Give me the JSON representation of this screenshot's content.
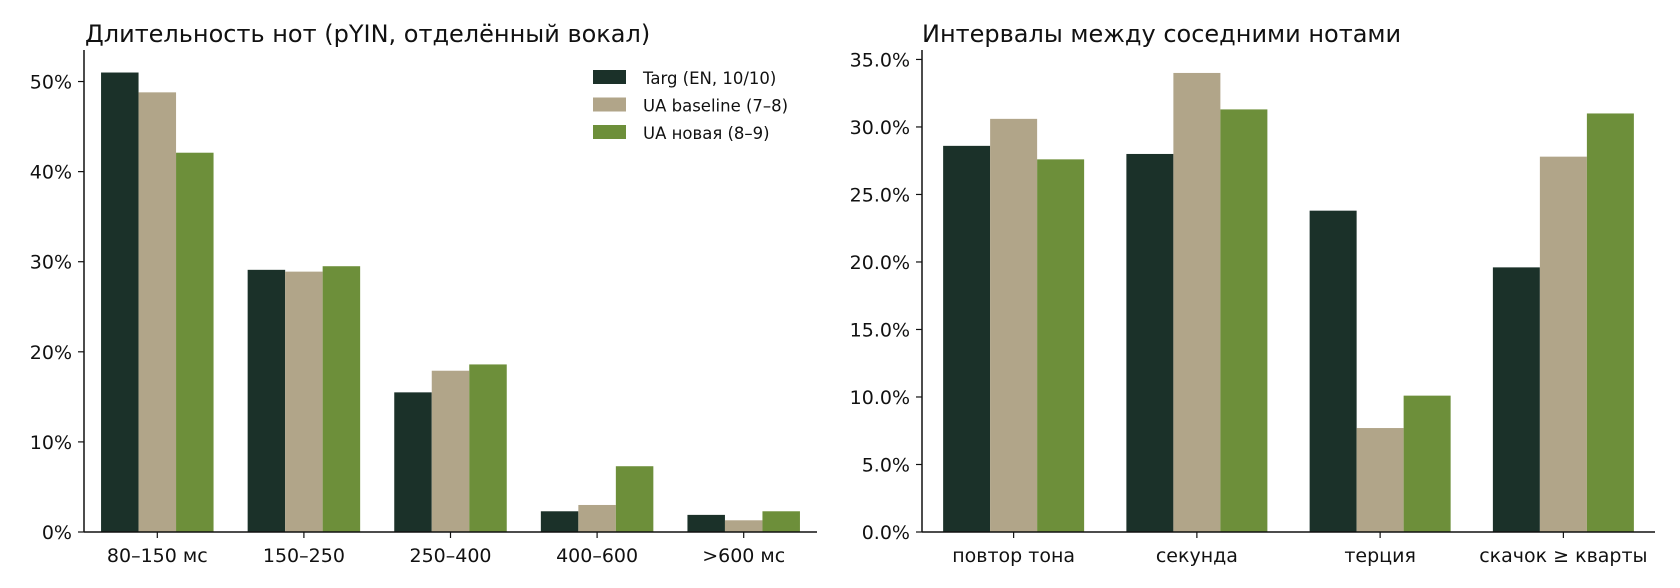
{
  "colors": {
    "targ": "#1b3129",
    "ua_baseline": "#b1a589",
    "ua_new": "#6d8f3a",
    "axis": "#111111"
  },
  "legend": {
    "placement": "top-right",
    "entries": [
      "Targ (EN, 10/10)",
      "UA baseline (7–8)",
      "UA новая (8–9)"
    ]
  },
  "chart_data": [
    {
      "type": "bar",
      "title": "Длительность нот (pYIN, отделённый вокал)",
      "xlabel": "",
      "ylabel": "",
      "categories": [
        "80–150 мс",
        "150–250",
        "250–400",
        "400–600",
        ">600 мс"
      ],
      "series": [
        {
          "name": "Targ (EN, 10/10)",
          "values": [
            51.0,
            29.1,
            15.5,
            2.3,
            1.9
          ]
        },
        {
          "name": "UA baseline (7–8)",
          "values": [
            48.8,
            28.9,
            17.9,
            3.0,
            1.3
          ]
        },
        {
          "name": "UA новая (8–9)",
          "values": [
            42.1,
            29.5,
            18.6,
            7.3,
            2.3
          ]
        }
      ],
      "ylim": [
        0,
        53.5
      ],
      "yticks": [
        0,
        10,
        20,
        30,
        40,
        50
      ],
      "ytick_labels": [
        "0%",
        "10%",
        "20%",
        "30%",
        "40%",
        "50%"
      ],
      "grid": false
    },
    {
      "type": "bar",
      "title": "Интервалы между соседними нотами",
      "xlabel": "",
      "ylabel": "",
      "categories": [
        "повтор тона",
        "секунда",
        "терция",
        "скачок ≥ кварты"
      ],
      "series": [
        {
          "name": "Targ (EN, 10/10)",
          "values": [
            28.6,
            28.0,
            23.8,
            19.6
          ]
        },
        {
          "name": "UA baseline (7–8)",
          "values": [
            30.6,
            34.0,
            7.7,
            27.8
          ]
        },
        {
          "name": "UA новая (8–9)",
          "values": [
            27.6,
            31.3,
            10.1,
            31.0
          ]
        }
      ],
      "ylim": [
        0,
        35.7
      ],
      "yticks": [
        0,
        5,
        10,
        15,
        20,
        25,
        30,
        35
      ],
      "ytick_labels": [
        "0.0%",
        "5.0%",
        "10.0%",
        "15.0%",
        "20.0%",
        "25.0%",
        "30.0%",
        "35.0%"
      ],
      "grid": false
    }
  ]
}
